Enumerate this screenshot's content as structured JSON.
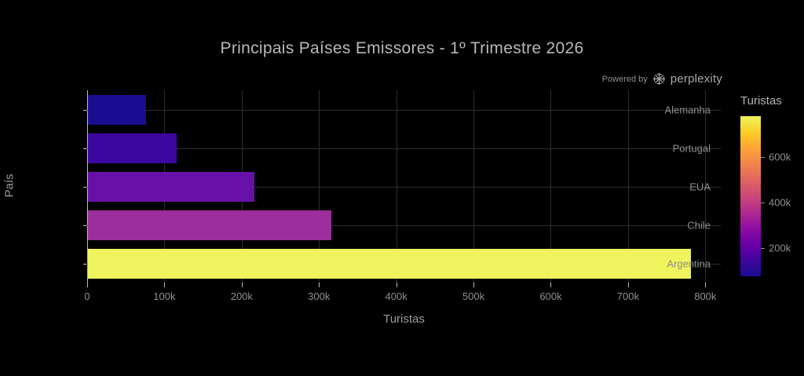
{
  "badge": {
    "text": "Powered by",
    "brand": "perplexity"
  },
  "chart_data": {
    "type": "bar",
    "orientation": "horizontal",
    "title": "Principais Países Emissores - 1º Trimestre 2026",
    "categories": [
      "Alemanha",
      "Portugal",
      "EUA",
      "Chile",
      "Argentina"
    ],
    "values": [
      75000,
      115000,
      215000,
      315000,
      780000
    ],
    "value_labels": [
      "75k",
      "115k",
      "215k",
      "315k",
      "780k"
    ],
    "bar_colors": [
      "#190d91",
      "#3b07a0",
      "#6710a7",
      "#9d2f9d",
      "#eff35e"
    ],
    "xlabel": "Turistas",
    "ylabel": "País",
    "xlim": [
      0,
      820000
    ],
    "x_tick_values": [
      0,
      100000,
      200000,
      300000,
      400000,
      500000,
      600000,
      700000,
      800000
    ],
    "x_tick_labels": [
      "0",
      "100k",
      "200k",
      "300k",
      "400k",
      "500k",
      "600k",
      "700k",
      "800k"
    ],
    "grid": true,
    "legend_position": "right-colorbar",
    "colorbar": {
      "title": "Turistas",
      "range": [
        75000,
        780000
      ],
      "tick_values": [
        200000,
        400000,
        600000
      ],
      "tick_labels": [
        "200k",
        "400k",
        "600k"
      ],
      "colormap": "plasma",
      "gradient_stops": [
        "#190d91",
        "#41049d",
        "#6a00a8",
        "#8f0da4",
        "#b12a90",
        "#cc4778",
        "#e16462",
        "#f2844b",
        "#fca636",
        "#fcce25",
        "#eff35e"
      ]
    },
    "colors": {
      "background": "#000000",
      "title_text": "#b8b8b8",
      "tick_text": "#8f8f8f",
      "axis_title_text": "#9c9c9c",
      "grid": "#2e2e2e",
      "axis_line": "#bdbdbd"
    }
  }
}
